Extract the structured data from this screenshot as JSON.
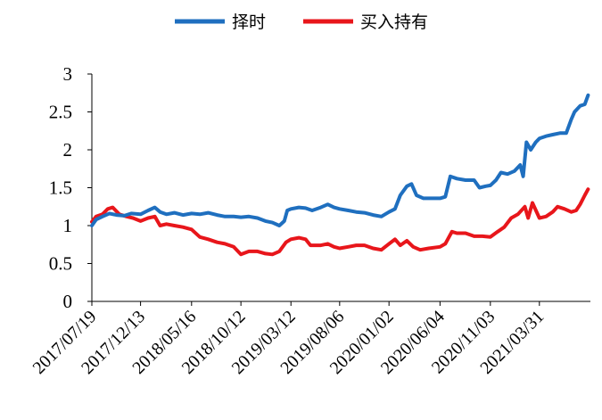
{
  "chart_data": {
    "type": "line",
    "ylim": [
      0,
      3
    ],
    "yticks": [
      "0",
      "0.5",
      "1",
      "1.5",
      "2",
      "2.5",
      "3"
    ],
    "xlim": [
      "2017-07-19",
      "2021-09-01"
    ],
    "x_tick_labels": [
      "2017/07/19",
      "2017/12/13",
      "2018/05/16",
      "2018/10/12",
      "2019/03/12",
      "2019/08/06",
      "2020/01/02",
      "2020/06/04",
      "2020/11/03",
      "2021/03/31"
    ],
    "legend_position": "top-center",
    "grid": false,
    "series": [
      {
        "name": "择时",
        "color": "#1f6fbf",
        "points": [
          [
            "2017-07-19",
            1.0
          ],
          [
            "2017-08-01",
            1.08
          ],
          [
            "2017-08-20",
            1.12
          ],
          [
            "2017-09-10",
            1.16
          ],
          [
            "2017-10-01",
            1.14
          ],
          [
            "2017-10-25",
            1.13
          ],
          [
            "2017-11-15",
            1.16
          ],
          [
            "2017-12-13",
            1.15
          ],
          [
            "2018-01-05",
            1.2
          ],
          [
            "2018-01-25",
            1.24
          ],
          [
            "2018-02-10",
            1.18
          ],
          [
            "2018-03-01",
            1.15
          ],
          [
            "2018-03-25",
            1.17
          ],
          [
            "2018-04-20",
            1.14
          ],
          [
            "2018-05-16",
            1.16
          ],
          [
            "2018-06-10",
            1.15
          ],
          [
            "2018-07-05",
            1.17
          ],
          [
            "2018-08-01",
            1.14
          ],
          [
            "2018-08-25",
            1.12
          ],
          [
            "2018-09-20",
            1.12
          ],
          [
            "2018-10-12",
            1.11
          ],
          [
            "2018-11-05",
            1.12
          ],
          [
            "2018-12-01",
            1.1
          ],
          [
            "2018-12-25",
            1.06
          ],
          [
            "2019-01-15",
            1.04
          ],
          [
            "2019-02-05",
            1.0
          ],
          [
            "2019-02-20",
            1.06
          ],
          [
            "2019-03-01",
            1.2
          ],
          [
            "2019-03-12",
            1.22
          ],
          [
            "2019-04-05",
            1.24
          ],
          [
            "2019-04-25",
            1.23
          ],
          [
            "2019-05-15",
            1.2
          ],
          [
            "2019-06-10",
            1.24
          ],
          [
            "2019-07-01",
            1.28
          ],
          [
            "2019-07-20",
            1.24
          ],
          [
            "2019-08-06",
            1.22
          ],
          [
            "2019-09-01",
            1.2
          ],
          [
            "2019-09-25",
            1.18
          ],
          [
            "2019-10-20",
            1.17
          ],
          [
            "2019-11-15",
            1.14
          ],
          [
            "2019-12-10",
            1.12
          ],
          [
            "2020-01-02",
            1.18
          ],
          [
            "2020-01-20",
            1.22
          ],
          [
            "2020-02-05",
            1.4
          ],
          [
            "2020-02-25",
            1.52
          ],
          [
            "2020-03-10",
            1.55
          ],
          [
            "2020-03-25",
            1.4
          ],
          [
            "2020-04-15",
            1.36
          ],
          [
            "2020-05-10",
            1.36
          ],
          [
            "2020-06-04",
            1.36
          ],
          [
            "2020-06-20",
            1.38
          ],
          [
            "2020-07-05",
            1.65
          ],
          [
            "2020-07-25",
            1.62
          ],
          [
            "2020-08-20",
            1.6
          ],
          [
            "2020-09-15",
            1.6
          ],
          [
            "2020-10-01",
            1.5
          ],
          [
            "2020-10-20",
            1.52
          ],
          [
            "2020-11-03",
            1.53
          ],
          [
            "2020-11-20",
            1.6
          ],
          [
            "2020-12-05",
            1.7
          ],
          [
            "2020-12-25",
            1.68
          ],
          [
            "2021-01-15",
            1.72
          ],
          [
            "2021-02-01",
            1.8
          ],
          [
            "2021-02-10",
            1.65
          ],
          [
            "2021-02-20",
            2.1
          ],
          [
            "2021-03-05",
            2.0
          ],
          [
            "2021-03-20",
            2.1
          ],
          [
            "2021-03-31",
            2.15
          ],
          [
            "2021-04-20",
            2.18
          ],
          [
            "2021-05-10",
            2.2
          ],
          [
            "2021-06-01",
            2.22
          ],
          [
            "2021-06-20",
            2.22
          ],
          [
            "2021-07-05",
            2.4
          ],
          [
            "2021-07-15",
            2.5
          ],
          [
            "2021-08-01",
            2.58
          ],
          [
            "2021-08-15",
            2.6
          ],
          [
            "2021-08-25",
            2.72
          ]
        ]
      },
      {
        "name": "买入持有",
        "color": "#e8161b",
        "points": [
          [
            "2017-07-19",
            1.05
          ],
          [
            "2017-08-01",
            1.12
          ],
          [
            "2017-08-20",
            1.15
          ],
          [
            "2017-09-05",
            1.22
          ],
          [
            "2017-09-20",
            1.24
          ],
          [
            "2017-10-10",
            1.15
          ],
          [
            "2017-11-01",
            1.12
          ],
          [
            "2017-11-20",
            1.1
          ],
          [
            "2017-12-13",
            1.06
          ],
          [
            "2018-01-05",
            1.1
          ],
          [
            "2018-01-25",
            1.12
          ],
          [
            "2018-02-10",
            1.0
          ],
          [
            "2018-03-01",
            1.02
          ],
          [
            "2018-03-25",
            1.0
          ],
          [
            "2018-04-20",
            0.98
          ],
          [
            "2018-05-16",
            0.95
          ],
          [
            "2018-06-10",
            0.85
          ],
          [
            "2018-07-05",
            0.82
          ],
          [
            "2018-08-01",
            0.78
          ],
          [
            "2018-08-25",
            0.76
          ],
          [
            "2018-09-20",
            0.72
          ],
          [
            "2018-10-12",
            0.62
          ],
          [
            "2018-11-05",
            0.66
          ],
          [
            "2018-12-01",
            0.66
          ],
          [
            "2018-12-25",
            0.63
          ],
          [
            "2019-01-15",
            0.62
          ],
          [
            "2019-02-05",
            0.66
          ],
          [
            "2019-02-25",
            0.78
          ],
          [
            "2019-03-12",
            0.82
          ],
          [
            "2019-04-05",
            0.84
          ],
          [
            "2019-04-25",
            0.82
          ],
          [
            "2019-05-10",
            0.74
          ],
          [
            "2019-06-10",
            0.74
          ],
          [
            "2019-07-01",
            0.76
          ],
          [
            "2019-07-20",
            0.72
          ],
          [
            "2019-08-06",
            0.7
          ],
          [
            "2019-09-01",
            0.72
          ],
          [
            "2019-09-25",
            0.74
          ],
          [
            "2019-10-20",
            0.74
          ],
          [
            "2019-11-15",
            0.7
          ],
          [
            "2019-12-10",
            0.68
          ],
          [
            "2020-01-02",
            0.76
          ],
          [
            "2020-01-20",
            0.82
          ],
          [
            "2020-02-05",
            0.74
          ],
          [
            "2020-02-25",
            0.8
          ],
          [
            "2020-03-15",
            0.72
          ],
          [
            "2020-04-05",
            0.68
          ],
          [
            "2020-05-01",
            0.7
          ],
          [
            "2020-06-04",
            0.72
          ],
          [
            "2020-06-20",
            0.76
          ],
          [
            "2020-07-10",
            0.92
          ],
          [
            "2020-07-25",
            0.9
          ],
          [
            "2020-08-20",
            0.9
          ],
          [
            "2020-09-15",
            0.86
          ],
          [
            "2020-10-10",
            0.86
          ],
          [
            "2020-11-03",
            0.85
          ],
          [
            "2020-11-25",
            0.92
          ],
          [
            "2020-12-15",
            0.98
          ],
          [
            "2021-01-05",
            1.1
          ],
          [
            "2021-01-25",
            1.15
          ],
          [
            "2021-02-15",
            1.25
          ],
          [
            "2021-02-25",
            1.1
          ],
          [
            "2021-03-10",
            1.3
          ],
          [
            "2021-03-31",
            1.1
          ],
          [
            "2021-04-20",
            1.12
          ],
          [
            "2021-05-10",
            1.18
          ],
          [
            "2021-05-25",
            1.25
          ],
          [
            "2021-06-15",
            1.22
          ],
          [
            "2021-07-05",
            1.18
          ],
          [
            "2021-07-20",
            1.2
          ],
          [
            "2021-08-01",
            1.28
          ],
          [
            "2021-08-15",
            1.4
          ],
          [
            "2021-08-25",
            1.48
          ]
        ]
      }
    ]
  }
}
